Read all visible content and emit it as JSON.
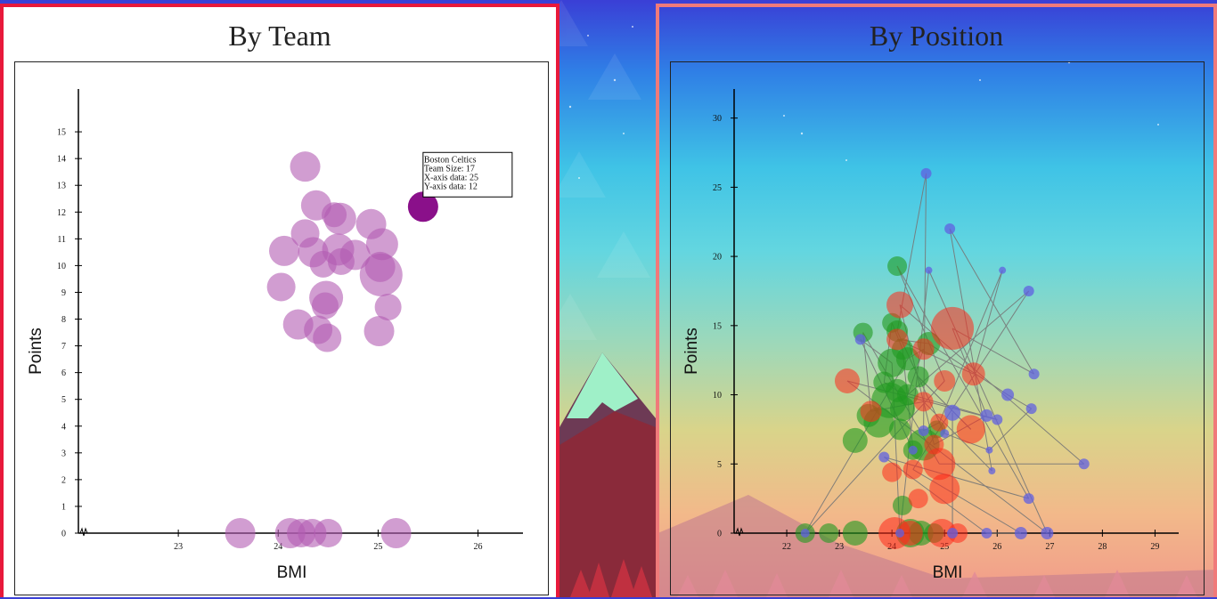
{
  "colors": {
    "team_bubble": "#b35cb3",
    "team_highlight": "#8a108a",
    "pos_green": "#1f9a1f",
    "pos_red": "#ff2a1a",
    "pos_blue": "#6060e0",
    "line": "#777777"
  },
  "chart_data": [
    {
      "type": "scatter",
      "title": "By Team",
      "xlabel": "BMI",
      "ylabel": "Points",
      "xlim": [
        22.0,
        26.45
      ],
      "ylim": [
        0,
        16.6
      ],
      "xticks": [
        23,
        24,
        25,
        26
      ],
      "yticks": [
        0,
        1,
        2,
        3,
        4,
        5,
        6,
        7,
        8,
        9,
        10,
        11,
        12,
        13,
        14,
        15
      ],
      "tooltip": {
        "lines": [
          "Boston Celtics",
          "Team Size: 17",
          "X-axis data: 25",
          "Y-axis data: 12"
        ]
      },
      "highlight_index": 0,
      "points": [
        {
          "x": 25.45,
          "y": 12.2,
          "r": 17
        },
        {
          "x": 24.27,
          "y": 13.7,
          "r": 17
        },
        {
          "x": 24.38,
          "y": 12.25,
          "r": 17
        },
        {
          "x": 24.62,
          "y": 11.75,
          "r": 18
        },
        {
          "x": 24.56,
          "y": 11.9,
          "r": 14
        },
        {
          "x": 24.93,
          "y": 11.55,
          "r": 17
        },
        {
          "x": 24.27,
          "y": 11.2,
          "r": 16
        },
        {
          "x": 24.06,
          "y": 10.55,
          "r": 17
        },
        {
          "x": 24.35,
          "y": 10.5,
          "r": 17
        },
        {
          "x": 24.6,
          "y": 10.6,
          "r": 18
        },
        {
          "x": 25.04,
          "y": 10.8,
          "r": 18
        },
        {
          "x": 24.77,
          "y": 10.4,
          "r": 17
        },
        {
          "x": 24.45,
          "y": 10.05,
          "r": 15
        },
        {
          "x": 24.63,
          "y": 10.15,
          "r": 15
        },
        {
          "x": 25.02,
          "y": 9.95,
          "r": 17
        },
        {
          "x": 25.03,
          "y": 9.65,
          "r": 24
        },
        {
          "x": 24.03,
          "y": 9.2,
          "r": 16
        },
        {
          "x": 24.48,
          "y": 8.8,
          "r": 19
        },
        {
          "x": 24.47,
          "y": 8.5,
          "r": 15
        },
        {
          "x": 25.1,
          "y": 8.45,
          "r": 15
        },
        {
          "x": 24.2,
          "y": 7.8,
          "r": 17
        },
        {
          "x": 24.4,
          "y": 7.6,
          "r": 16
        },
        {
          "x": 24.49,
          "y": 7.3,
          "r": 16
        },
        {
          "x": 25.01,
          "y": 7.55,
          "r": 17
        },
        {
          "x": 23.62,
          "y": 0,
          "r": 17
        },
        {
          "x": 24.12,
          "y": 0,
          "r": 17
        },
        {
          "x": 24.23,
          "y": 0,
          "r": 16
        },
        {
          "x": 24.34,
          "y": 0,
          "r": 16
        },
        {
          "x": 24.5,
          "y": 0,
          "r": 16
        },
        {
          "x": 25.18,
          "y": 0,
          "r": 17
        }
      ]
    },
    {
      "type": "scatter",
      "title": "By Position",
      "xlabel": "BMI",
      "ylabel": "Points",
      "xlim": [
        21.0,
        29.45
      ],
      "ylim": [
        0,
        32.1
      ],
      "xticks": [
        22,
        23,
        24,
        25,
        26,
        27,
        28,
        29
      ],
      "yticks": [
        0,
        5,
        10,
        15,
        20,
        25,
        30
      ],
      "green": [
        {
          "x": 24.1,
          "y": 19.3,
          "r": 11
        },
        {
          "x": 23.45,
          "y": 14.5,
          "r": 11
        },
        {
          "x": 24.0,
          "y": 15.2,
          "r": 11
        },
        {
          "x": 24.1,
          "y": 14.6,
          "r": 12
        },
        {
          "x": 24.7,
          "y": 13.7,
          "r": 13
        },
        {
          "x": 24.2,
          "y": 13.3,
          "r": 12
        },
        {
          "x": 24.0,
          "y": 12.3,
          "r": 16
        },
        {
          "x": 24.3,
          "y": 12.6,
          "r": 13
        },
        {
          "x": 24.5,
          "y": 11.3,
          "r": 12
        },
        {
          "x": 23.85,
          "y": 10.9,
          "r": 12
        },
        {
          "x": 24.1,
          "y": 10.3,
          "r": 13
        },
        {
          "x": 24.3,
          "y": 10.0,
          "r": 12
        },
        {
          "x": 23.95,
          "y": 9.6,
          "r": 20
        },
        {
          "x": 24.2,
          "y": 9.0,
          "r": 14
        },
        {
          "x": 23.55,
          "y": 8.5,
          "r": 13
        },
        {
          "x": 23.75,
          "y": 8.0,
          "r": 17
        },
        {
          "x": 24.15,
          "y": 7.5,
          "r": 12
        },
        {
          "x": 24.6,
          "y": 6.4,
          "r": 18
        },
        {
          "x": 24.4,
          "y": 6.0,
          "r": 11
        },
        {
          "x": 23.3,
          "y": 6.7,
          "r": 14
        },
        {
          "x": 24.85,
          "y": 7.5,
          "r": 10
        },
        {
          "x": 24.2,
          "y": 2.0,
          "r": 11
        },
        {
          "x": 22.35,
          "y": 0,
          "r": 11
        },
        {
          "x": 22.8,
          "y": 0,
          "r": 11
        },
        {
          "x": 23.3,
          "y": 0,
          "r": 14
        },
        {
          "x": 24.35,
          "y": 0,
          "r": 16
        },
        {
          "x": 24.55,
          "y": 0,
          "r": 14
        },
        {
          "x": 24.8,
          "y": 0,
          "r": 11
        }
      ],
      "red": [
        {
          "x": 24.15,
          "y": 16.5,
          "r": 15
        },
        {
          "x": 24.1,
          "y": 14.0,
          "r": 12
        },
        {
          "x": 24.6,
          "y": 13.3,
          "r": 12
        },
        {
          "x": 25.15,
          "y": 14.8,
          "r": 24
        },
        {
          "x": 23.15,
          "y": 11.0,
          "r": 14
        },
        {
          "x": 25.0,
          "y": 11.0,
          "r": 12
        },
        {
          "x": 25.55,
          "y": 11.5,
          "r": 13
        },
        {
          "x": 24.6,
          "y": 9.5,
          "r": 11
        },
        {
          "x": 23.6,
          "y": 8.8,
          "r": 12
        },
        {
          "x": 25.5,
          "y": 7.5,
          "r": 16
        },
        {
          "x": 24.9,
          "y": 8.0,
          "r": 10
        },
        {
          "x": 24.8,
          "y": 6.4,
          "r": 11
        },
        {
          "x": 24.9,
          "y": 5.0,
          "r": 18
        },
        {
          "x": 24.4,
          "y": 4.6,
          "r": 11
        },
        {
          "x": 24.0,
          "y": 4.4,
          "r": 11
        },
        {
          "x": 25.0,
          "y": 3.2,
          "r": 17
        },
        {
          "x": 24.5,
          "y": 2.5,
          "r": 11
        },
        {
          "x": 24.05,
          "y": 0,
          "r": 18
        },
        {
          "x": 24.35,
          "y": 0,
          "r": 14
        },
        {
          "x": 24.95,
          "y": 0,
          "r": 16
        },
        {
          "x": 25.25,
          "y": 0,
          "r": 11
        }
      ],
      "blue": [
        {
          "x": 24.65,
          "y": 26.0,
          "r": 6
        },
        {
          "x": 25.1,
          "y": 22.0,
          "r": 6
        },
        {
          "x": 24.7,
          "y": 19.0,
          "r": 4
        },
        {
          "x": 26.1,
          "y": 19.0,
          "r": 4
        },
        {
          "x": 26.6,
          "y": 17.5,
          "r": 6
        },
        {
          "x": 23.4,
          "y": 14.0,
          "r": 6
        },
        {
          "x": 26.7,
          "y": 11.5,
          "r": 6
        },
        {
          "x": 26.2,
          "y": 10.0,
          "r": 7
        },
        {
          "x": 26.65,
          "y": 9.0,
          "r": 6
        },
        {
          "x": 25.15,
          "y": 8.7,
          "r": 9
        },
        {
          "x": 25.8,
          "y": 8.5,
          "r": 7
        },
        {
          "x": 24.6,
          "y": 7.4,
          "r": 6
        },
        {
          "x": 25.0,
          "y": 7.2,
          "r": 5
        },
        {
          "x": 26.0,
          "y": 8.2,
          "r": 6
        },
        {
          "x": 24.4,
          "y": 6.0,
          "r": 5
        },
        {
          "x": 25.85,
          "y": 6.0,
          "r": 4
        },
        {
          "x": 23.85,
          "y": 5.5,
          "r": 6
        },
        {
          "x": 27.65,
          "y": 5.0,
          "r": 6
        },
        {
          "x": 25.9,
          "y": 4.5,
          "r": 4
        },
        {
          "x": 26.6,
          "y": 2.5,
          "r": 6
        },
        {
          "x": 22.35,
          "y": 0,
          "r": 5
        },
        {
          "x": 24.15,
          "y": 0,
          "r": 5
        },
        {
          "x": 25.15,
          "y": 0,
          "r": 6
        },
        {
          "x": 25.8,
          "y": 0,
          "r": 6
        },
        {
          "x": 26.45,
          "y": 0,
          "r": 7
        },
        {
          "x": 26.95,
          "y": 0,
          "r": 7
        }
      ]
    }
  ]
}
